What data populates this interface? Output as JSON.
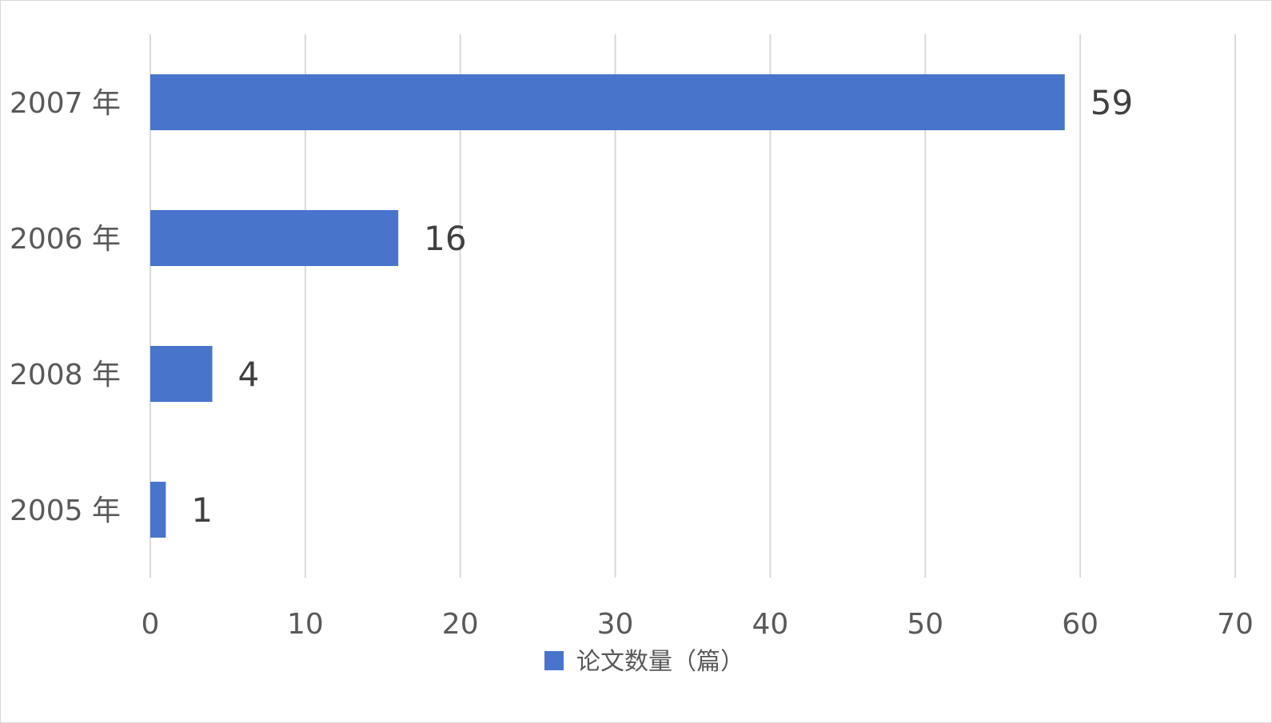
{
  "chart_data": {
    "type": "bar",
    "orientation": "horizontal",
    "categories": [
      "2007 年",
      "2006 年",
      "2008 年",
      "2005 年"
    ],
    "series": [
      {
        "name": "论文数量（篇）",
        "color": "#4874cb",
        "values": [
          59,
          16,
          4,
          1
        ]
      }
    ],
    "xlim": [
      0,
      70
    ],
    "xticks": [
      0,
      10,
      20,
      30,
      40,
      50,
      60,
      70
    ],
    "grid": true,
    "legend_position": "bottom",
    "data_labels": true
  }
}
